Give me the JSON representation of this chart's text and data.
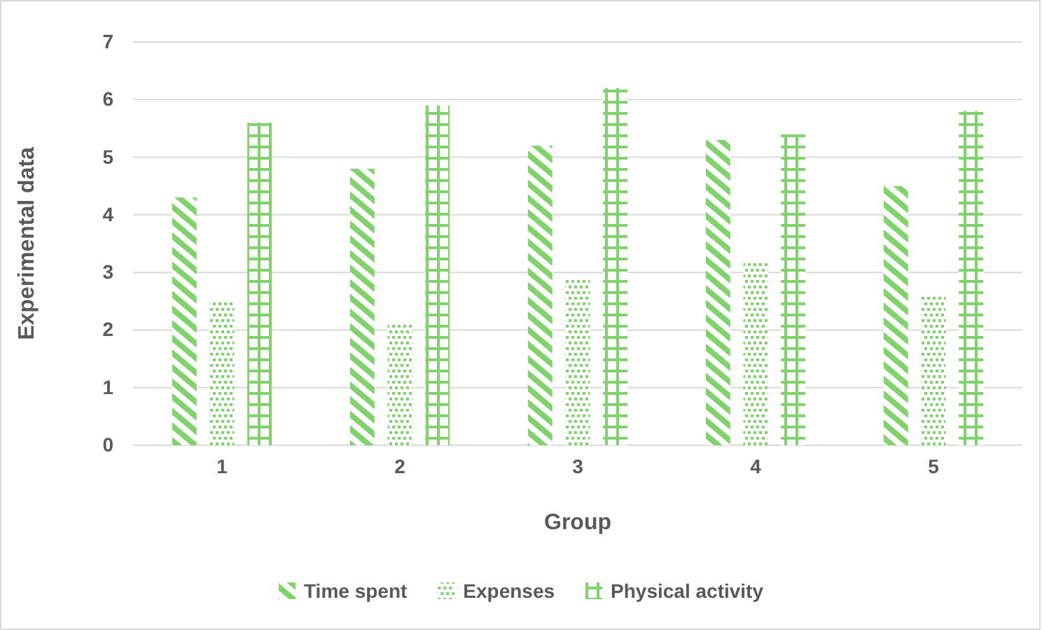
{
  "chart_data": {
    "type": "bar",
    "xlabel": "Group",
    "ylabel": "Experimental data",
    "categories": [
      "1",
      "2",
      "3",
      "4",
      "5"
    ],
    "series": [
      {
        "name": "Time spent",
        "color": "#7fd36a",
        "values": [
          4.3,
          4.8,
          5.2,
          5.3,
          4.5
        ]
      },
      {
        "name": "Expenses",
        "color": "#7fd36a",
        "values": [
          2.5,
          2.1,
          2.9,
          3.2,
          2.6
        ]
      },
      {
        "name": "Physical activity",
        "color": "#7fd36a",
        "values": [
          5.6,
          5.9,
          6.2,
          5.4,
          5.8
        ]
      }
    ],
    "ylim": [
      0,
      7
    ],
    "yticks": [
      0,
      1,
      2,
      3,
      4,
      5,
      6,
      7
    ],
    "grid": "y",
    "legend": "bottom"
  }
}
